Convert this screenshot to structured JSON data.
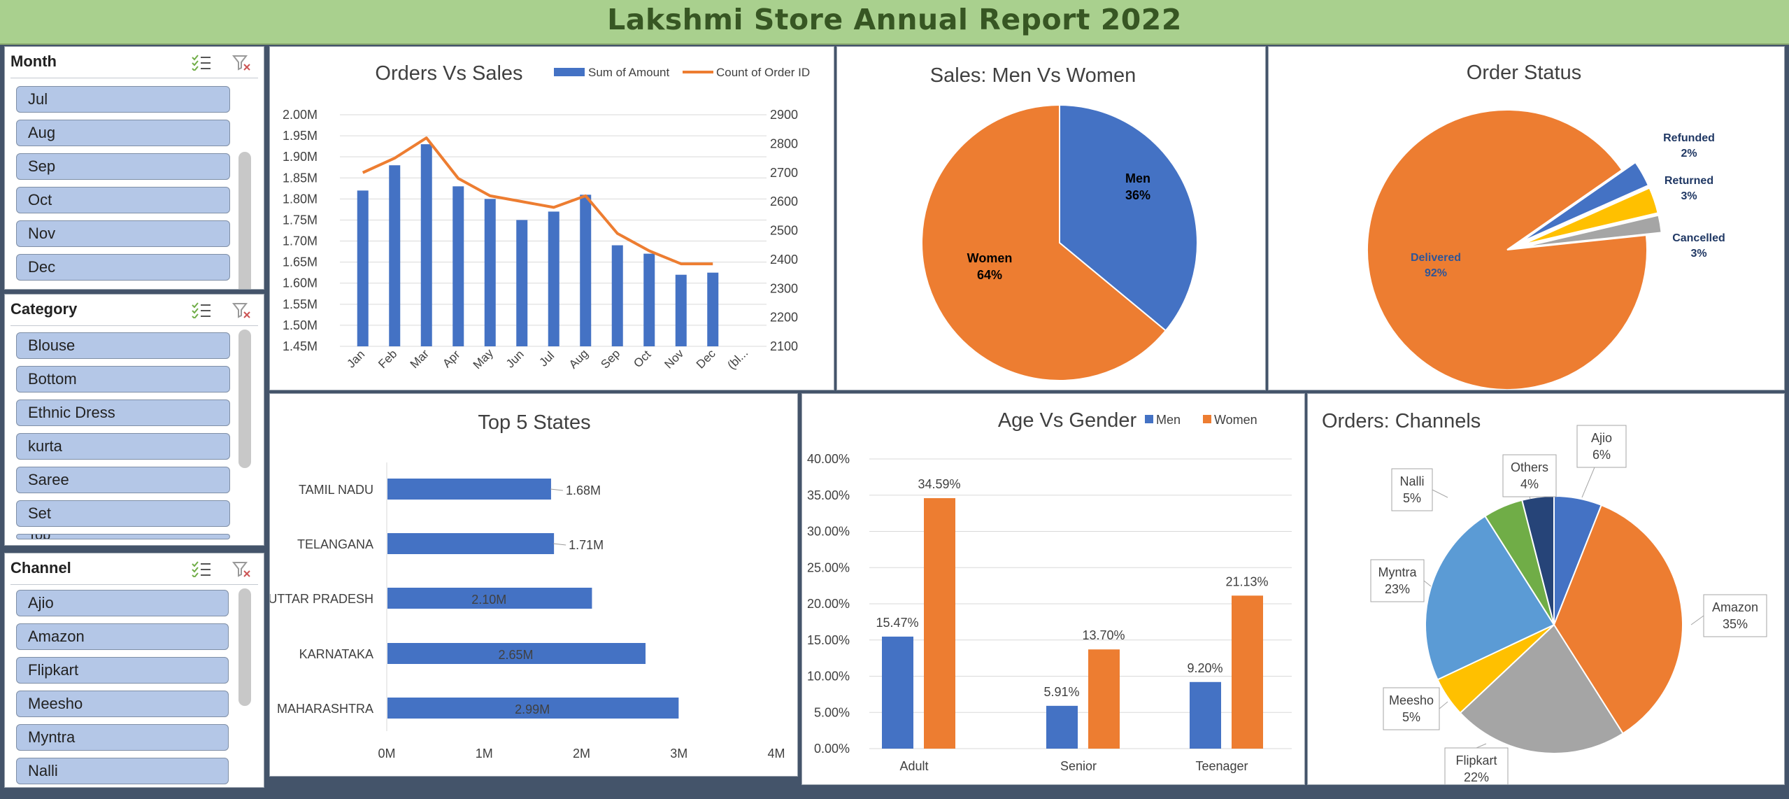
{
  "report_title": "Lakshmi Store Annual Report 2022",
  "slicers": [
    {
      "title": "Month",
      "items": [
        "Jul",
        "Aug",
        "Sep",
        "Oct",
        "Nov",
        "Dec"
      ]
    },
    {
      "title": "Category",
      "items": [
        "Blouse",
        "Bottom",
        "Ethnic Dress",
        "kurta",
        "Saree",
        "Set",
        "Top"
      ]
    },
    {
      "title": "Channel",
      "items": [
        "Ajio",
        "Amazon",
        "Flipkart",
        "Meesho",
        "Myntra",
        "Nalli"
      ]
    }
  ],
  "icons": {
    "multiselect": "multi-select-icon",
    "clear_filter": "clear-filter-icon"
  },
  "colors": {
    "blue": "#4472c4",
    "orange": "#ed7d31",
    "gray": "#a5a5a5",
    "yellow": "#ffc000",
    "lightblue": "#5b9bd5",
    "green": "#70ad47",
    "navy": "#264478"
  },
  "chart_data": [
    {
      "id": "orders_vs_sales",
      "type": "bar",
      "title": "Orders Vs Sales",
      "categories": [
        "Jan",
        "Feb",
        "Mar",
        "Apr",
        "May",
        "Jun",
        "Jul",
        "Aug",
        "Sep",
        "Oct",
        "Nov",
        "Dec",
        "(bl..."
      ],
      "series": [
        {
          "name": "Sum of Amount",
          "type": "bar",
          "axis": "left",
          "values": [
            1.82,
            1.88,
            1.93,
            1.83,
            1.8,
            1.75,
            1.77,
            1.81,
            1.69,
            1.67,
            1.62,
            1.625,
            null
          ]
        },
        {
          "name": "Count of Order ID",
          "type": "line",
          "axis": "right",
          "values": [
            2700,
            2750,
            2820,
            2680,
            2620,
            2600,
            2580,
            2620,
            2490,
            2430,
            2385,
            2385,
            null
          ]
        }
      ],
      "y_left": {
        "min": 1.45,
        "max": 2.0,
        "step": 0.05,
        "suffix": "M"
      },
      "y_right": {
        "min": 2100,
        "max": 2900,
        "step": 100
      },
      "legend": "top-right"
    },
    {
      "id": "sales_men_women",
      "type": "pie",
      "title": "Sales: Men Vs Women",
      "slices": [
        {
          "name": "Men",
          "label": "36%",
          "value": 36
        },
        {
          "name": "Women",
          "label": "64%",
          "value": 64
        }
      ]
    },
    {
      "id": "order_status",
      "type": "pie",
      "title": "Order Status",
      "slices": [
        {
          "name": "Delivered",
          "label": "92%",
          "value": 92
        },
        {
          "name": "Cancelled",
          "label": "3%",
          "value": 3
        },
        {
          "name": "Returned",
          "label": "3%",
          "value": 3
        },
        {
          "name": "Refunded",
          "label": "2%",
          "value": 2
        }
      ]
    },
    {
      "id": "top5_states",
      "type": "bar",
      "orientation": "horizontal",
      "title": "Top 5 States",
      "categories": [
        "TAMIL NADU",
        "TELANGANA",
        "UTTAR PRADESH",
        "KARNATAKA",
        "MAHARASHTRA"
      ],
      "values": [
        1.68,
        1.71,
        2.1,
        2.65,
        2.99
      ],
      "labels": [
        "1.68M",
        "1.71M",
        "2.10M",
        "2.65M",
        "2.99M"
      ],
      "xlim": [
        0,
        4
      ],
      "ticks": [
        "0M",
        "1M",
        "2M",
        "3M",
        "4M"
      ]
    },
    {
      "id": "age_vs_gender",
      "type": "bar",
      "title": "Age Vs Gender",
      "categories": [
        "Adult",
        "Senior",
        "Teenager"
      ],
      "series": [
        {
          "name": "Men",
          "values": [
            15.47,
            5.91,
            9.2
          ],
          "labels": [
            "15.47%",
            "5.91%",
            "9.20%"
          ]
        },
        {
          "name": "Women",
          "values": [
            34.59,
            13.7,
            21.13
          ],
          "labels": [
            "34.59%",
            "13.70%",
            "21.13%"
          ]
        }
      ],
      "ylim": [
        0,
        40
      ],
      "ticks": [
        "0.00%",
        "5.00%",
        "10.00%",
        "15.00%",
        "20.00%",
        "25.00%",
        "30.00%",
        "35.00%",
        "40.00%"
      ],
      "legend": "top"
    },
    {
      "id": "orders_channels",
      "type": "pie",
      "title": "Orders: Channels",
      "slices": [
        {
          "name": "Ajio",
          "label": "6%",
          "value": 6
        },
        {
          "name": "Amazon",
          "label": "35%",
          "value": 35
        },
        {
          "name": "Flipkart",
          "label": "22%",
          "value": 22
        },
        {
          "name": "Meesho",
          "label": "5%",
          "value": 5
        },
        {
          "name": "Myntra",
          "label": "23%",
          "value": 23
        },
        {
          "name": "Nalli",
          "label": "5%",
          "value": 5
        },
        {
          "name": "Others",
          "label": "4%",
          "value": 4
        }
      ]
    }
  ]
}
